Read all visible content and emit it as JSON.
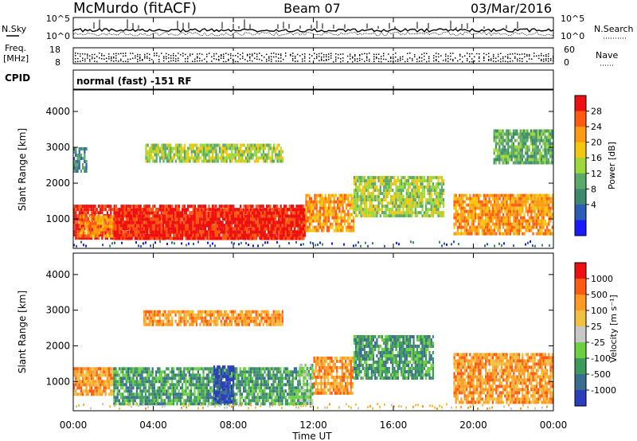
{
  "header": {
    "station": "McMurdo (fitACF)",
    "beam": "Beam 07",
    "date": "03/Mar/2016"
  },
  "nsky_panel": {
    "left_label": "N.Sky",
    "right_label": "N.Search",
    "left_ticks": [
      "10^5",
      "10^0"
    ],
    "right_ticks": [
      "10^5",
      "10^0"
    ]
  },
  "freq_panel": {
    "left_label_line1": "Freq.",
    "left_label_line2": "[MHz]",
    "right_label": "Nave",
    "left_ticks": [
      "18",
      "8"
    ],
    "right_ticks": [
      "60",
      "0"
    ]
  },
  "cpid_panel": {
    "label": "CPID",
    "text": "normal (fast) -151 RF"
  },
  "time_axis": {
    "label": "Time UT",
    "ticks": [
      "00:00",
      "04:00",
      "08:00",
      "12:00",
      "16:00",
      "20:00",
      "00:00"
    ]
  },
  "chart_data": [
    {
      "type": "heatmap",
      "title": "",
      "xlabel": "Time UT",
      "ylabel": "Slant Range [km]",
      "y_ticks": [
        1000,
        2000,
        3000,
        4000
      ],
      "ylim": [
        180,
        4600
      ],
      "xlim_hours": [
        0,
        24
      ],
      "colorbar": {
        "label": "Power [dB]",
        "ticks": [
          "4",
          "8",
          "12",
          "16",
          "20",
          "24",
          "28"
        ],
        "colors": [
          "#1a1aff",
          "#2c5db4",
          "#3e8a6e",
          "#5aa86a",
          "#9cd83a",
          "#f4c60c",
          "#ff9a10",
          "#ff5a10",
          "#ee1010"
        ]
      },
      "regions": [
        {
          "t0": 0.0,
          "t1": 11.5,
          "r0": 450,
          "r1": 1400,
          "level": 8
        },
        {
          "t0": 0.3,
          "t1": 2.0,
          "r0": 550,
          "r1": 1100,
          "level": 6
        },
        {
          "t0": 2.0,
          "t1": 11.6,
          "r0": 450,
          "r1": 1300,
          "level": 8
        },
        {
          "t0": 11.6,
          "t1": 14.0,
          "r0": 650,
          "r1": 1700,
          "level": 6
        },
        {
          "t0": 14.0,
          "t1": 18.5,
          "r0": 1050,
          "r1": 2200,
          "level": 4
        },
        {
          "t0": 19.0,
          "t1": 24.0,
          "r0": 550,
          "r1": 1700,
          "level": 6
        },
        {
          "t0": 0.0,
          "t1": 0.7,
          "r0": 2300,
          "r1": 3000,
          "level": 2
        },
        {
          "t0": 3.6,
          "t1": 10.5,
          "r0": 2600,
          "r1": 3100,
          "level": 4
        },
        {
          "t0": 21.0,
          "t1": 24.0,
          "r0": 2550,
          "r1": 3500,
          "level": 3
        }
      ]
    },
    {
      "type": "heatmap",
      "title": "",
      "xlabel": "Time UT",
      "ylabel": "Slant Range [km]",
      "y_ticks": [
        1000,
        2000,
        3000,
        4000
      ],
      "ylim": [
        180,
        4600
      ],
      "xlim_hours": [
        0,
        24
      ],
      "colorbar": {
        "label": "Velocity [m s⁻¹]",
        "ticks": [
          "1000",
          "500",
          "100",
          "25",
          "-25",
          "-100",
          "-500",
          "-1000"
        ],
        "colors": [
          "#2a3dbb",
          "#3a6e8e",
          "#3c9a5a",
          "#6cd040",
          "#c8c8c8",
          "#f0c040",
          "#ff9a20",
          "#ff5a10",
          "#ee1010"
        ]
      },
      "regions": [
        {
          "t0": 0.0,
          "t1": 2.0,
          "r0": 600,
          "r1": 1400,
          "level": 6
        },
        {
          "t0": 2.0,
          "t1": 11.3,
          "r0": 350,
          "r1": 1400,
          "level": 2
        },
        {
          "t0": 7.0,
          "t1": 8.0,
          "r0": 400,
          "r1": 1450,
          "level": 0
        },
        {
          "t0": 11.3,
          "t1": 12.0,
          "r0": 400,
          "r1": 1500,
          "level": 3
        },
        {
          "t0": 12.0,
          "t1": 14.0,
          "r0": 650,
          "r1": 1700,
          "level": 6
        },
        {
          "t0": 14.0,
          "t1": 18.0,
          "r0": 1050,
          "r1": 2300,
          "level": 2
        },
        {
          "t0": 19.0,
          "t1": 24.0,
          "r0": 450,
          "r1": 1800,
          "level": 6
        },
        {
          "t0": 3.5,
          "t1": 10.5,
          "r0": 2600,
          "r1": 3000,
          "level": 6
        }
      ]
    }
  ]
}
